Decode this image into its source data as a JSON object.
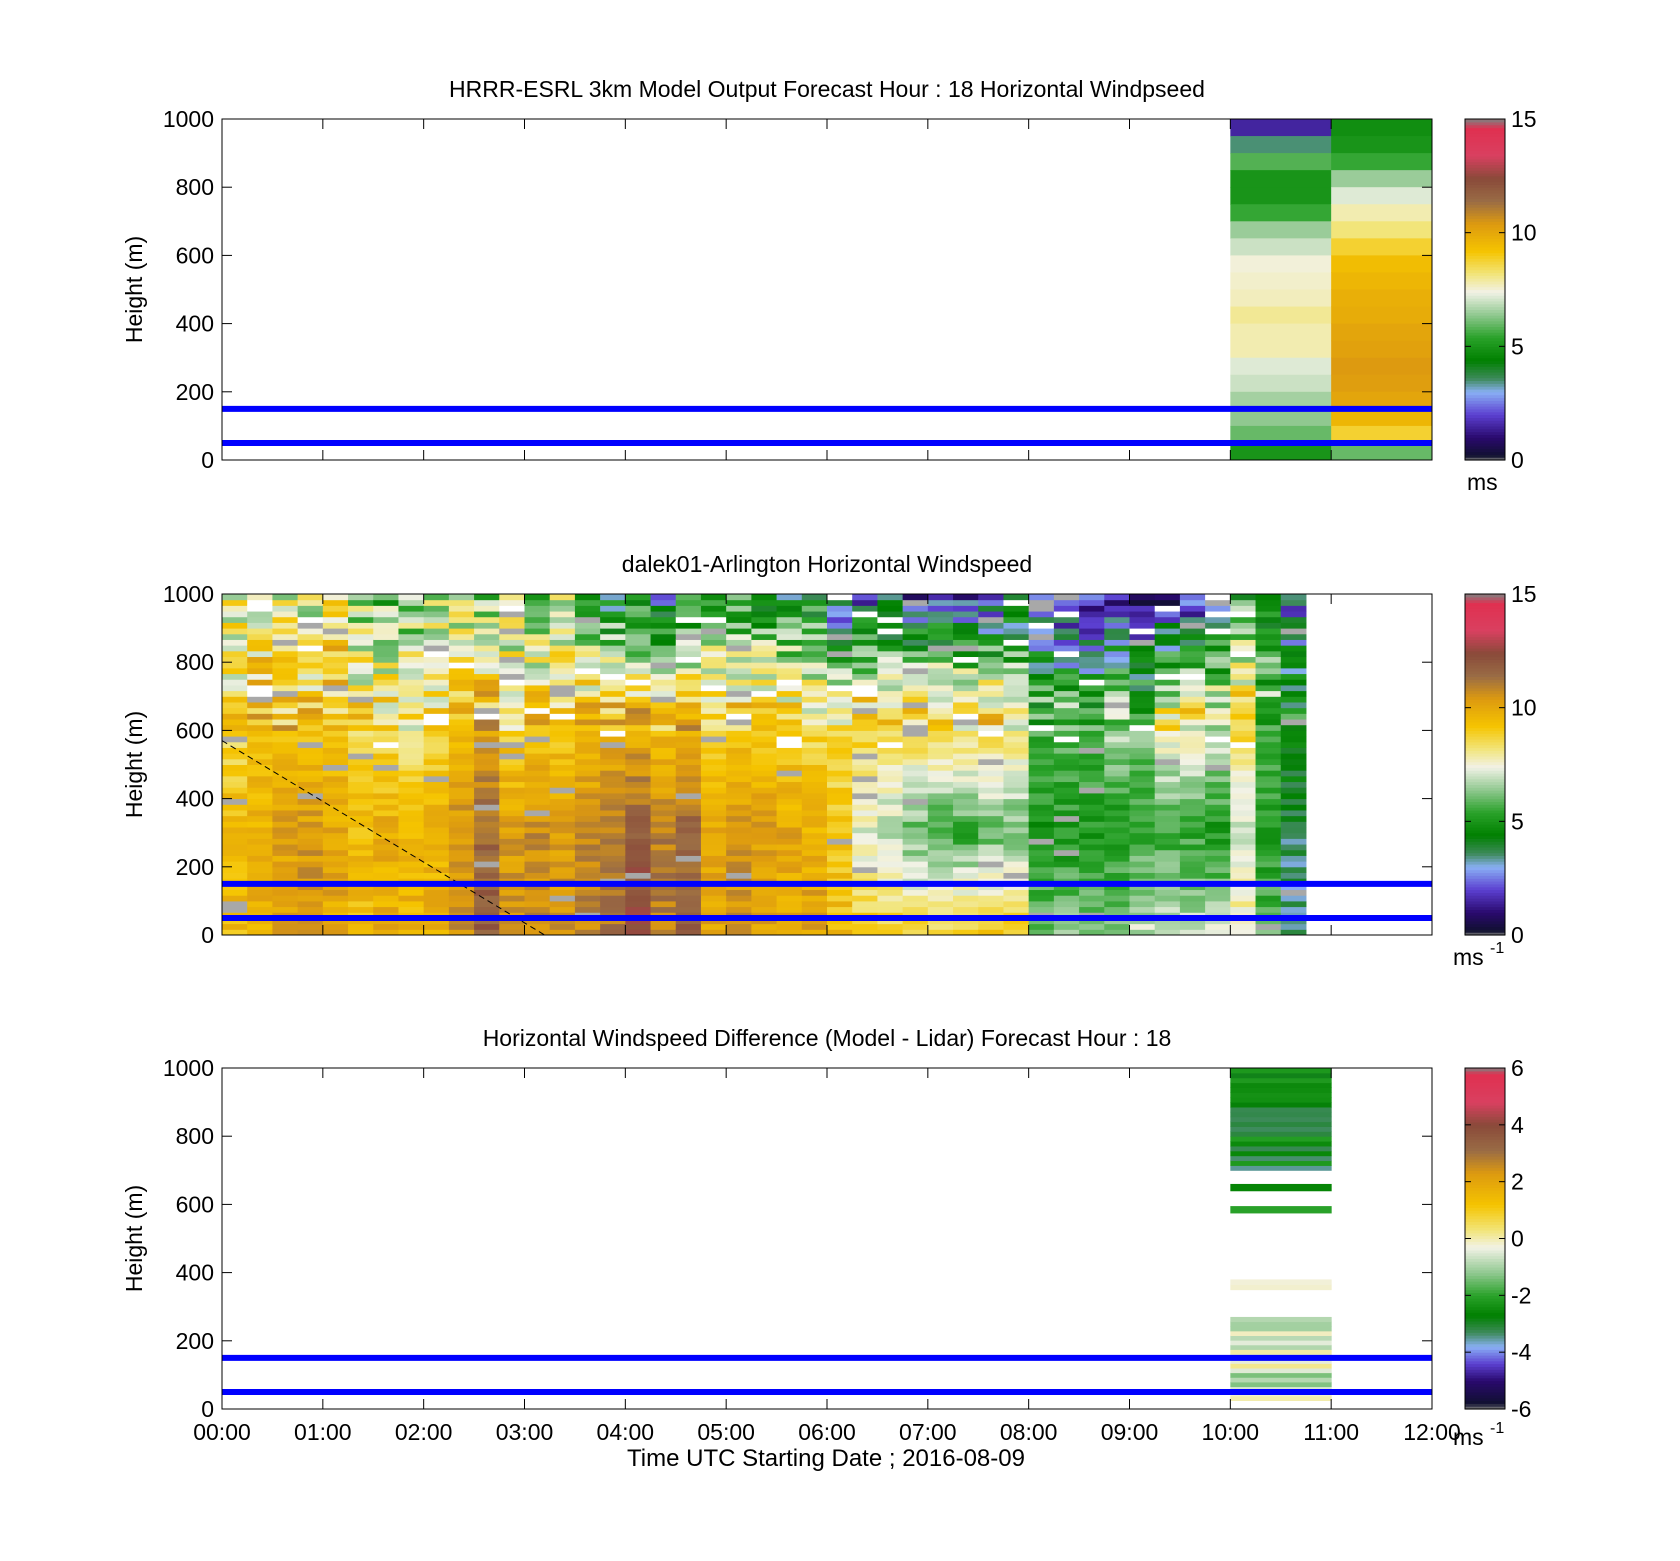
{
  "figure": {
    "xlabel": "Time UTC  Starting Date ; 2016-08-09",
    "x_ticks": [
      "00:00",
      "01:00",
      "02:00",
      "03:00",
      "04:00",
      "05:00",
      "06:00",
      "07:00",
      "08:00",
      "09:00",
      "10:00",
      "11:00",
      "12:00"
    ],
    "series_line_color": "#0000ff"
  },
  "chart_data": [
    {
      "type": "heatmap",
      "title": "HRRR-ESRL 3km Model Output   Forecast Hour : 18 Horizontal Windpseed",
      "ylabel": "Height (m)",
      "xlim": [
        "00:00",
        "12:00"
      ],
      "ylim": [
        0,
        1000
      ],
      "y_ticks": [
        "0",
        "200",
        "400",
        "600",
        "800",
        "1000"
      ],
      "colorbar": {
        "ticks": [
          "0",
          "5",
          "10",
          "15"
        ],
        "unit": "ms",
        "unit_sup": "",
        "range": [
          0,
          15
        ]
      },
      "reference_lines_m": [
        50,
        150
      ],
      "data_columns": [
        {
          "start": "10:00",
          "end": "11:00",
          "heights_m": [
            975,
            925,
            875,
            825,
            775,
            725,
            675,
            625,
            575,
            525,
            475,
            425,
            375,
            325,
            275,
            225,
            175,
            125,
            75,
            25
          ],
          "values": [
            1.5,
            3.5,
            5.8,
            5.0,
            5.0,
            5.5,
            6.5,
            7.0,
            7.5,
            7.6,
            7.7,
            8.0,
            7.8,
            7.8,
            7.2,
            7.0,
            6.6,
            6.4,
            6.0,
            5.0
          ]
        },
        {
          "start": "11:00",
          "end": "12:00",
          "heights_m": [
            975,
            925,
            875,
            825,
            775,
            725,
            675,
            625,
            575,
            525,
            475,
            425,
            375,
            325,
            275,
            225,
            175,
            125,
            75,
            25
          ],
          "values": [
            4.8,
            5.0,
            5.5,
            6.5,
            7.2,
            7.8,
            8.2,
            8.8,
            9.4,
            9.6,
            9.8,
            9.9,
            10.1,
            10.2,
            10.4,
            10.3,
            10.1,
            9.6,
            8.8,
            6.0
          ]
        }
      ]
    },
    {
      "type": "heatmap",
      "title": "dalek01-Arlington  Horizontal Windspeed",
      "ylabel": "Height (m)",
      "xlim": [
        "00:00",
        "12:00"
      ],
      "ylim": [
        0,
        1000
      ],
      "y_ticks": [
        "0",
        "200",
        "400",
        "600",
        "800",
        "1000"
      ],
      "colorbar": {
        "ticks": [
          "0",
          "5",
          "10",
          "15"
        ],
        "unit": "ms",
        "unit_sup": "-1",
        "range": [
          0,
          15
        ]
      },
      "reference_lines_m": [
        50,
        150
      ],
      "dashed_line": {
        "x": [
          "00:00",
          "03:12"
        ],
        "y": [
          570,
          0
        ]
      },
      "data_columns": [
        {
          "start": "00:00",
          "end": "00:15",
          "bottom": [
            9.5,
            9.5
          ],
          "top": [
            8.5,
            7.5
          ]
        },
        {
          "start": "00:15",
          "end": "00:30",
          "bottom": [
            9.8,
            9.8
          ],
          "top": [
            9.5,
            7.5
          ]
        },
        {
          "start": "00:30",
          "end": "00:45",
          "bottom": [
            10.2,
            10.2
          ],
          "top": [
            9.3,
            7.3
          ]
        },
        {
          "start": "00:45",
          "end": "01:00",
          "bottom": [
            10.4,
            10.4
          ],
          "top": [
            9.0,
            7.2
          ]
        },
        {
          "start": "01:00",
          "end": "01:15",
          "bottom": [
            10.0,
            10.0
          ],
          "top": [
            9.2,
            8.5
          ]
        },
        {
          "start": "01:15",
          "end": "01:30",
          "bottom": [
            9.4,
            9.4
          ],
          "top": [
            8.5,
            6.5
          ]
        },
        {
          "start": "01:30",
          "end": "01:45",
          "bottom": [
            9.8,
            9.8
          ],
          "top": [
            8.6,
            6.0
          ]
        },
        {
          "start": "01:45",
          "end": "02:00",
          "bottom": [
            9.6,
            9.6
          ],
          "top": [
            8.0,
            6.2
          ]
        },
        {
          "start": "02:00",
          "end": "02:15",
          "bottom": [
            9.7,
            9.7
          ],
          "top": [
            8.4,
            6.8
          ]
        },
        {
          "start": "02:15",
          "end": "02:30",
          "bottom": [
            10.5,
            10.5
          ],
          "top": [
            9.5,
            6.8
          ]
        },
        {
          "start": "02:30",
          "end": "02:45",
          "bottom": [
            12.0,
            11.5
          ],
          "top": [
            9.8,
            6.5
          ]
        },
        {
          "start": "02:45",
          "end": "03:00",
          "bottom": [
            10.4,
            10.4
          ],
          "top": [
            8.6,
            6.8
          ]
        },
        {
          "start": "03:00",
          "end": "03:15",
          "bottom": [
            10.6,
            10.6
          ],
          "top": [
            9.0,
            6.0
          ]
        },
        {
          "start": "03:15",
          "end": "03:30",
          "bottom": [
            10.4,
            10.4
          ],
          "top": [
            9.0,
            6.8
          ]
        },
        {
          "start": "03:30",
          "end": "03:45",
          "bottom": [
            10.8,
            10.8
          ],
          "top": [
            9.2,
            5.5
          ]
        },
        {
          "start": "03:45",
          "end": "04:00",
          "bottom": [
            11.2,
            11.2
          ],
          "top": [
            9.6,
            4.0
          ]
        },
        {
          "start": "04:00",
          "end": "04:15",
          "bottom": [
            12.6,
            11.8
          ],
          "top": [
            9.6,
            4.5
          ]
        },
        {
          "start": "04:15",
          "end": "04:30",
          "bottom": [
            11.0,
            11.0
          ],
          "top": [
            9.2,
            3.0
          ]
        },
        {
          "start": "04:30",
          "end": "04:45",
          "bottom": [
            11.6,
            11.6
          ],
          "top": [
            9.4,
            4.6
          ]
        },
        {
          "start": "04:45",
          "end": "05:00",
          "bottom": [
            10.0,
            10.0
          ],
          "top": [
            9.0,
            5.0
          ]
        },
        {
          "start": "05:00",
          "end": "05:15",
          "bottom": [
            10.5,
            10.5
          ],
          "top": [
            9.0,
            5.0
          ]
        },
        {
          "start": "05:15",
          "end": "05:30",
          "bottom": [
            10.2,
            10.2
          ],
          "top": [
            9.0,
            4.5
          ]
        },
        {
          "start": "05:30",
          "end": "05:45",
          "bottom": [
            10.0,
            10.0
          ],
          "top": [
            8.8,
            4.2
          ]
        },
        {
          "start": "05:45",
          "end": "06:00",
          "bottom": [
            10.2,
            9.8
          ],
          "top": [
            8.4,
            4.8
          ]
        },
        {
          "start": "06:00",
          "end": "06:15",
          "bottom": [
            9.4,
            9.0
          ],
          "top": [
            8.4,
            2.2
          ]
        },
        {
          "start": "06:15",
          "end": "06:30",
          "bottom": [
            9.2,
            7.2
          ],
          "top": [
            9.2,
            2.4
          ]
        },
        {
          "start": "06:30",
          "end": "06:45",
          "bottom": [
            9.0,
            6.8
          ],
          "top": [
            8.8,
            2.5
          ]
        },
        {
          "start": "06:45",
          "end": "07:00",
          "bottom": [
            9.0,
            6.0
          ],
          "top": [
            9.0,
            1.8
          ]
        },
        {
          "start": "07:00",
          "end": "07:15",
          "bottom": [
            9.0,
            5.5
          ],
          "top": [
            9.0,
            2.4
          ]
        },
        {
          "start": "07:15",
          "end": "07:30",
          "bottom": [
            9.2,
            5.5
          ],
          "top": [
            9.0,
            1.6
          ]
        },
        {
          "start": "07:30",
          "end": "07:45",
          "bottom": [
            9.2,
            6.0
          ],
          "top": [
            9.0,
            2.0
          ]
        },
        {
          "start": "07:45",
          "end": "08:00",
          "bottom": [
            9.0,
            6.0
          ],
          "top": [
            8.6,
            3.2
          ]
        },
        {
          "start": "08:00",
          "end": "08:15",
          "bottom": [
            6.2,
            5.0
          ],
          "top": [
            5.8,
            2.4
          ]
        },
        {
          "start": "08:15",
          "end": "08:30",
          "bottom": [
            6.5,
            5.0
          ],
          "top": [
            6.2,
            1.0
          ]
        },
        {
          "start": "08:30",
          "end": "08:45",
          "bottom": [
            6.2,
            5.0
          ],
          "top": [
            6.0,
            1.2
          ]
        },
        {
          "start": "08:45",
          "end": "09:00",
          "bottom": [
            6.6,
            5.0
          ],
          "top": [
            7.0,
            0.8
          ]
        },
        {
          "start": "09:00",
          "end": "09:15",
          "bottom": [
            7.0,
            5.5
          ],
          "top": [
            6.2,
            1.0
          ]
        },
        {
          "start": "09:15",
          "end": "09:30",
          "bottom": [
            7.4,
            5.5
          ],
          "top": [
            8.0,
            1.0
          ]
        },
        {
          "start": "09:30",
          "end": "09:45",
          "bottom": [
            7.0,
            5.5
          ],
          "top": [
            8.5,
            1.2
          ]
        },
        {
          "start": "09:45",
          "end": "10:00",
          "bottom": [
            7.2,
            5.0
          ],
          "top": [
            7.5,
            3.0
          ]
        },
        {
          "start": "10:00",
          "end": "10:15",
          "bottom": [
            8.0,
            7.0
          ],
          "top": [
            8.8,
            5.0
          ]
        },
        {
          "start": "10:15",
          "end": "10:30",
          "bottom": [
            6.0,
            5.0
          ],
          "top": [
            6.0,
            5.0
          ]
        },
        {
          "start": "10:30",
          "end": "10:45",
          "bottom": [
            3.5,
            3.5
          ],
          "top": [
            5.0,
            2.0
          ]
        }
      ]
    },
    {
      "type": "heatmap",
      "title": "Horizontal Windspeed Difference (Model - Lidar) Forecast Hour : 18",
      "ylabel": "Height (m)",
      "xlim": [
        "00:00",
        "12:00"
      ],
      "ylim": [
        0,
        1000
      ],
      "y_ticks": [
        "0",
        "200",
        "400",
        "600",
        "800",
        "1000"
      ],
      "colorbar": {
        "ticks": [
          "-6",
          "-4",
          "-2",
          "0",
          "2",
          "4",
          "6"
        ],
        "unit": "ms",
        "unit_sup": "-1",
        "range": [
          -6,
          6
        ]
      },
      "reference_lines_m": [
        50,
        150
      ],
      "data_columns": [
        {
          "start": "10:00",
          "end": "11:00",
          "bands": [
            {
              "y0": 700,
              "y1": 1000,
              "value": -2.7
            },
            {
              "y0": 640,
              "y1": 660,
              "value": -2.5
            },
            {
              "y0": 575,
              "y1": 595,
              "value": -2.2
            },
            {
              "y0": 350,
              "y1": 380,
              "value": -0.3
            },
            {
              "y0": 25,
              "y1": 270,
              "value": -0.6
            }
          ]
        }
      ]
    }
  ]
}
